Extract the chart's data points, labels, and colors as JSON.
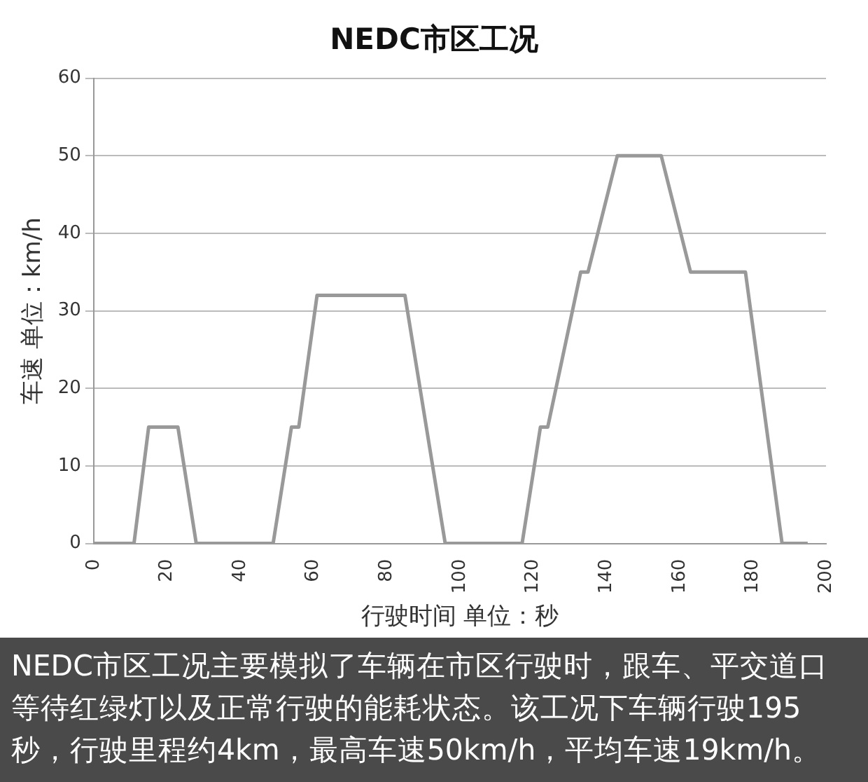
{
  "chart_data": {
    "type": "line",
    "title": "NEDC市区工况",
    "xlabel": "行驶时间 单位：秒",
    "ylabel": "车速 单位：km/h",
    "x": [
      0,
      11,
      15,
      23,
      28,
      49,
      54,
      56,
      61,
      85,
      96,
      117,
      122,
      124,
      133,
      135,
      143,
      155,
      163,
      178,
      188,
      195
    ],
    "series": [
      {
        "color": "#999999",
        "values": [
          0,
          0,
          15,
          15,
          0,
          0,
          15,
          15,
          32,
          32,
          0,
          0,
          15,
          15,
          35,
          35,
          50,
          50,
          35,
          35,
          0,
          0
        ]
      }
    ],
    "xlim": [
      0,
      200
    ],
    "xticks": [
      0,
      20,
      40,
      60,
      80,
      100,
      120,
      140,
      160,
      180,
      200
    ],
    "ylim": [
      0,
      60
    ],
    "yticks": [
      0,
      10,
      20,
      30,
      40,
      50,
      60
    ],
    "grid": "y",
    "legend": false,
    "marker": "none",
    "line_style": "solid",
    "annotations": [
      "NEDC市区工况主要模拟了车辆在市区行驶时，跟车、平交道口等待红绿灯以及正常行驶的能耗状态。该工况下车辆行驶195秒，行驶里程约4km，最高车速50km/h，平均车速19km/h。"
    ]
  }
}
